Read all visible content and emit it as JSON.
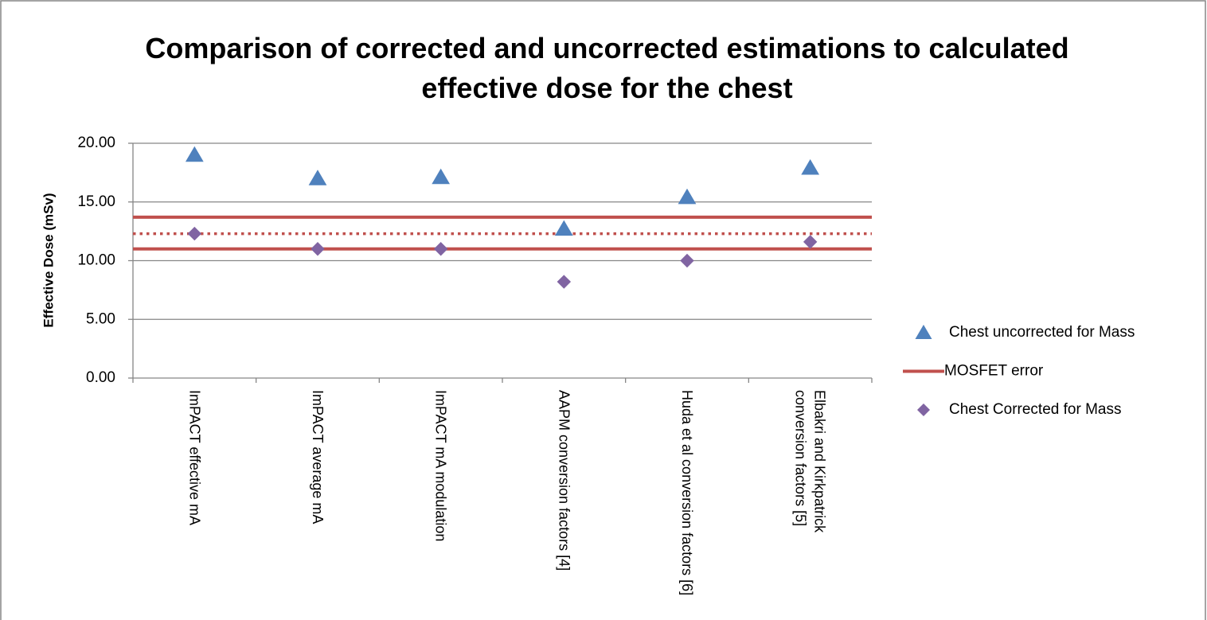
{
  "chart_data": {
    "type": "scatter-line",
    "title": "Comparison of corrected and uncorrected estimations to calculated effective dose  for the chest",
    "y_label": "Effective Dose (mSv)",
    "categories": [
      "ImPACT effective mA",
      "ImPACT average mA",
      "ImPACT mA modulation",
      "AAPM conversion factors [4]",
      "Huda et al  conversion factors [6]",
      "Elbakri and Kirkpatrick conversion factors [5]"
    ],
    "ylim": [
      0,
      20
    ],
    "yticks": [
      {
        "value": 0,
        "label": "0.00"
      },
      {
        "value": 5,
        "label": "5.00"
      },
      {
        "value": 10,
        "label": "10.00"
      },
      {
        "value": 15,
        "label": "15.00"
      },
      {
        "value": 20,
        "label": "20.00"
      }
    ],
    "grid": true,
    "legend": "right",
    "series": [
      {
        "name": "Chest uncorrected for Mass",
        "marker": "triangle",
        "color": "#4f81bd",
        "values": [
          19.0,
          17.0,
          17.1,
          12.7,
          15.4,
          17.9
        ]
      },
      {
        "name": "MOSFET error",
        "marker": "line",
        "style": "solid",
        "color": "#c0504d",
        "values": [
          13.7,
          13.7,
          13.7,
          13.7,
          13.7,
          13.7
        ]
      },
      {
        "name": "Chest Corrected for Mass",
        "marker": "diamond",
        "color": "#8064a2",
        "values": [
          12.3,
          11.0,
          11.0,
          8.2,
          10.0,
          11.6
        ]
      },
      {
        "name": null,
        "marker": "line",
        "style": "solid",
        "color": "#c0504d",
        "values": [
          11.0,
          11.0,
          11.0,
          11.0,
          11.0,
          11.0
        ]
      },
      {
        "name": null,
        "marker": "line",
        "style": "dotted",
        "color": "#c0504d",
        "values": [
          12.3,
          12.3,
          12.3,
          12.3,
          12.3,
          12.3
        ]
      }
    ]
  }
}
